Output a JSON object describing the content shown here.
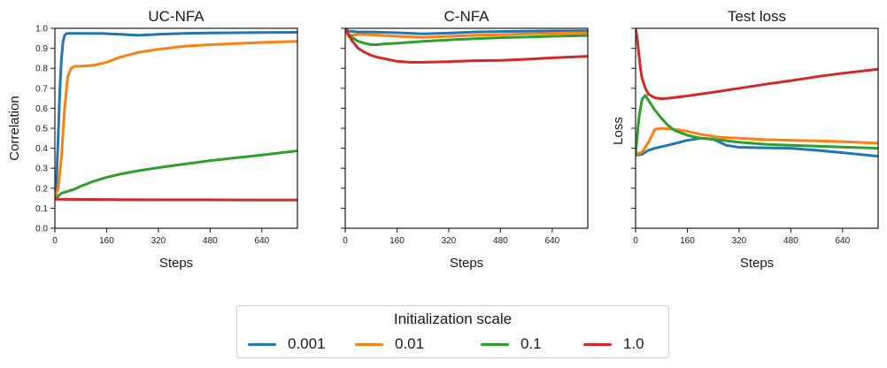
{
  "legend": {
    "title": "Initialization scale",
    "entries": [
      {
        "label": "0.001",
        "color": "#1f77b4"
      },
      {
        "label": "0.01",
        "color": "#ff7f0e"
      },
      {
        "label": "0.1",
        "color": "#2ca02c"
      },
      {
        "label": "1.0",
        "color": "#d62728"
      }
    ]
  },
  "chart_data": [
    {
      "type": "line",
      "title": "UC-NFA",
      "xlabel": "Steps",
      "ylabel": "Correlation",
      "xlim": [
        0,
        750
      ],
      "ylim": [
        0,
        1.0
      ],
      "xticks": [
        0,
        160,
        320,
        480,
        640
      ],
      "yticks": [
        0,
        0.1,
        0.2,
        0.3,
        0.4,
        0.5,
        0.6,
        0.7,
        0.8,
        0.9,
        1.0
      ],
      "ytick_labels": [
        "0.0",
        "0.1",
        "0.2",
        "0.3",
        "0.4",
        "0.5",
        "0.6",
        "0.7",
        "0.8",
        "0.9",
        "1.0"
      ],
      "series": [
        {
          "name": "0.001",
          "color": "#1f77b4",
          "x": [
            0,
            5,
            10,
            15,
            20,
            25,
            30,
            35,
            40,
            50,
            80,
            150,
            200,
            260,
            320,
            400,
            480,
            560,
            640,
            750
          ],
          "y": [
            0.15,
            0.24,
            0.45,
            0.68,
            0.84,
            0.93,
            0.965,
            0.973,
            0.975,
            0.975,
            0.975,
            0.974,
            0.97,
            0.965,
            0.97,
            0.975,
            0.977,
            0.978,
            0.979,
            0.98
          ]
        },
        {
          "name": "0.01",
          "color": "#ff7f0e",
          "x": [
            0,
            10,
            20,
            30,
            40,
            50,
            60,
            80,
            120,
            160,
            200,
            260,
            320,
            400,
            480,
            560,
            640,
            750
          ],
          "y": [
            0.15,
            0.2,
            0.35,
            0.6,
            0.76,
            0.8,
            0.81,
            0.81,
            0.815,
            0.83,
            0.855,
            0.88,
            0.895,
            0.91,
            0.918,
            0.924,
            0.929,
            0.935
          ]
        },
        {
          "name": "0.1",
          "color": "#2ca02c",
          "x": [
            0,
            10,
            20,
            40,
            60,
            80,
            120,
            160,
            200,
            260,
            320,
            400,
            480,
            560,
            640,
            750
          ],
          "y": [
            0.15,
            0.16,
            0.175,
            0.185,
            0.195,
            0.21,
            0.235,
            0.255,
            0.27,
            0.288,
            0.303,
            0.321,
            0.338,
            0.352,
            0.366,
            0.387
          ]
        },
        {
          "name": "1.0",
          "color": "#d62728",
          "x": [
            0,
            100,
            200,
            320,
            480,
            640,
            750
          ],
          "y": [
            0.145,
            0.144,
            0.143,
            0.142,
            0.142,
            0.141,
            0.141
          ]
        }
      ]
    },
    {
      "type": "line",
      "title": "C-NFA",
      "xlabel": "Steps",
      "ylabel": "",
      "xlim": [
        0,
        750
      ],
      "ylim": [
        0,
        1.0
      ],
      "xticks": [
        0,
        160,
        320,
        480,
        640
      ],
      "yticks": [
        0,
        0.1,
        0.2,
        0.3,
        0.4,
        0.5,
        0.6,
        0.7,
        0.8,
        0.9,
        1.0
      ],
      "ytick_labels": [],
      "series": [
        {
          "name": "0.001",
          "color": "#1f77b4",
          "x": [
            0,
            10,
            20,
            40,
            80,
            160,
            240,
            320,
            400,
            480,
            560,
            640,
            750
          ],
          "y": [
            1.0,
            0.985,
            0.985,
            0.982,
            0.982,
            0.978,
            0.972,
            0.976,
            0.982,
            0.984,
            0.986,
            0.987,
            0.988
          ]
        },
        {
          "name": "0.01",
          "color": "#ff7f0e",
          "x": [
            0,
            10,
            20,
            40,
            80,
            160,
            240,
            320,
            400,
            480,
            560,
            640,
            750
          ],
          "y": [
            0.99,
            0.96,
            0.965,
            0.97,
            0.968,
            0.96,
            0.955,
            0.96,
            0.965,
            0.968,
            0.972,
            0.975,
            0.978
          ]
        },
        {
          "name": "0.1",
          "color": "#2ca02c",
          "x": [
            0,
            10,
            20,
            40,
            60,
            80,
            100,
            120,
            160,
            240,
            320,
            400,
            480,
            560,
            640,
            750
          ],
          "y": [
            0.99,
            0.97,
            0.955,
            0.935,
            0.925,
            0.918,
            0.918,
            0.922,
            0.925,
            0.935,
            0.942,
            0.948,
            0.953,
            0.956,
            0.96,
            0.964
          ]
        },
        {
          "name": "1.0",
          "color": "#d62728",
          "x": [
            0,
            10,
            20,
            30,
            40,
            60,
            80,
            100,
            130,
            160,
            200,
            240,
            320,
            400,
            480,
            560,
            640,
            750
          ],
          "y": [
            1.0,
            0.97,
            0.94,
            0.92,
            0.9,
            0.88,
            0.865,
            0.855,
            0.845,
            0.835,
            0.83,
            0.83,
            0.833,
            0.838,
            0.84,
            0.845,
            0.852,
            0.86
          ]
        }
      ]
    },
    {
      "type": "line",
      "title": "Test loss",
      "xlabel": "Steps",
      "ylabel": "Loss",
      "xlim": [
        0,
        750
      ],
      "ylim": [
        0,
        1.0
      ],
      "xticks": [
        0,
        160,
        320,
        480,
        640
      ],
      "yticks": [
        0,
        0.1,
        0.2,
        0.3,
        0.4,
        0.5,
        0.6,
        0.7,
        0.8,
        0.9,
        1.0
      ],
      "ytick_labels": [],
      "series": [
        {
          "name": "0.001",
          "color": "#1f77b4",
          "x": [
            0,
            20,
            40,
            60,
            100,
            160,
            200,
            240,
            280,
            320,
            400,
            480,
            560,
            640,
            750
          ],
          "y": [
            0.365,
            0.37,
            0.39,
            0.4,
            0.415,
            0.44,
            0.45,
            0.445,
            0.415,
            0.405,
            0.402,
            0.4,
            0.39,
            0.378,
            0.36
          ]
        },
        {
          "name": "0.01",
          "color": "#ff7f0e",
          "x": [
            0,
            20,
            40,
            60,
            80,
            120,
            160,
            200,
            260,
            320,
            400,
            480,
            560,
            640,
            750
          ],
          "y": [
            0.37,
            0.38,
            0.43,
            0.495,
            0.5,
            0.495,
            0.485,
            0.47,
            0.455,
            0.45,
            0.443,
            0.44,
            0.437,
            0.433,
            0.425
          ]
        },
        {
          "name": "0.1",
          "color": "#2ca02c",
          "x": [
            0,
            10,
            20,
            30,
            40,
            60,
            80,
            100,
            120,
            160,
            200,
            240,
            320,
            400,
            480,
            560,
            640,
            750
          ],
          "y": [
            0.37,
            0.55,
            0.645,
            0.665,
            0.64,
            0.59,
            0.55,
            0.515,
            0.49,
            0.465,
            0.45,
            0.445,
            0.43,
            0.42,
            0.415,
            0.41,
            0.406,
            0.4
          ]
        },
        {
          "name": "1.0",
          "color": "#d62728",
          "x": [
            0,
            5,
            10,
            15,
            20,
            30,
            40,
            60,
            80,
            100,
            160,
            240,
            320,
            400,
            480,
            560,
            640,
            750
          ],
          "y": [
            1.0,
            0.95,
            0.87,
            0.8,
            0.75,
            0.7,
            0.67,
            0.652,
            0.648,
            0.65,
            0.662,
            0.68,
            0.7,
            0.72,
            0.738,
            0.758,
            0.775,
            0.795
          ]
        }
      ]
    }
  ]
}
